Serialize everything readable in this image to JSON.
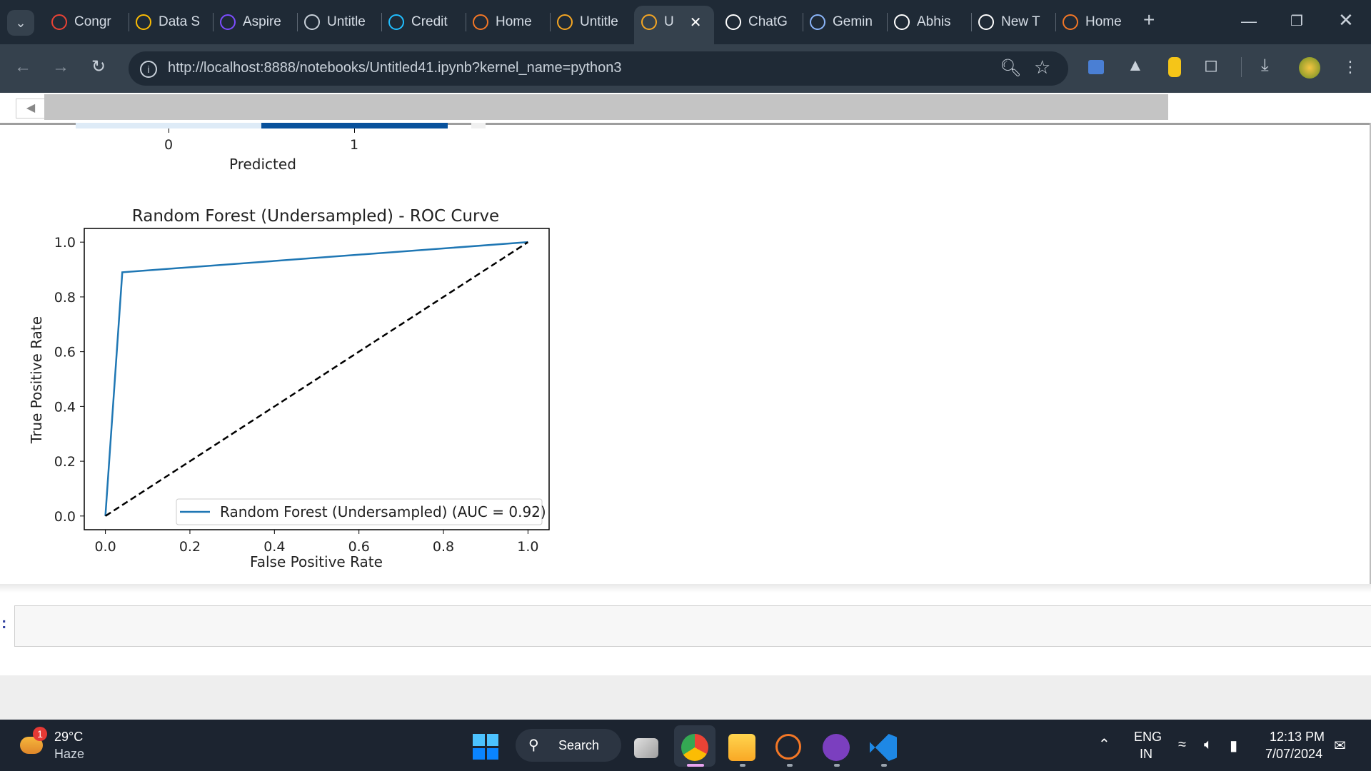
{
  "browser": {
    "tabs": [
      {
        "label": "Congr",
        "icon": "gmail-icon",
        "color": "#ea4335"
      },
      {
        "label": "Data S",
        "icon": "drive-icon",
        "color": "#fbbc04"
      },
      {
        "label": "Aspire",
        "icon": "list-app-icon",
        "color": "#7c4dff"
      },
      {
        "label": "Untitle",
        "icon": "globe-icon",
        "color": "#c9d1da"
      },
      {
        "label": "Credit",
        "icon": "kaggle-icon",
        "color": "#20beff"
      },
      {
        "label": "Home",
        "icon": "jupyter-icon",
        "color": "#f37726"
      },
      {
        "label": "Untitle",
        "icon": "notebook-icon",
        "color": "#f5a623"
      },
      {
        "label": "U",
        "icon": "notebook-icon",
        "color": "#f5a623",
        "active": true
      },
      {
        "label": "ChatG",
        "icon": "chatgpt-icon",
        "color": "#ffffff"
      },
      {
        "label": "Gemin",
        "icon": "gemini-icon",
        "color": "#8ab4f8"
      },
      {
        "label": "Abhis",
        "icon": "github-icon",
        "color": "#ffffff"
      },
      {
        "label": "New T",
        "icon": "chrome-icon",
        "color": "#ffffff"
      },
      {
        "label": "Home",
        "icon": "jupyter-icon",
        "color": "#f37726"
      }
    ],
    "new_tab_symbol": "+",
    "url": "http://localhost:8888/notebooks/Untitled41.ipynb?kernel_name=python3"
  },
  "confusion_matrix_fragment": {
    "tick_0": "0",
    "tick_1": "1",
    "xlabel": "Predicted",
    "cell_colors": [
      "#deebf7",
      "#08519c"
    ]
  },
  "chart_data": {
    "type": "line",
    "title": "Random Forest (Undersampled) - ROC Curve",
    "xlabel": "False Positive Rate",
    "ylabel": "True Positive Rate",
    "xlim": [
      -0.05,
      1.05
    ],
    "ylim": [
      -0.05,
      1.05
    ],
    "xticks": [
      "0.0",
      "0.2",
      "0.4",
      "0.6",
      "0.8",
      "1.0"
    ],
    "yticks": [
      "0.0",
      "0.2",
      "0.4",
      "0.6",
      "0.8",
      "1.0"
    ],
    "series": [
      {
        "name": "Random Forest (Undersampled) (AUC = 0.92)",
        "x": [
          0.0,
          0.04,
          1.0
        ],
        "y": [
          0.0,
          0.89,
          1.0
        ],
        "color": "#1f77b4",
        "style": "solid"
      },
      {
        "x": [
          0.0,
          1.0
        ],
        "y": [
          0.0,
          1.0
        ],
        "color": "#000000",
        "style": "dashed"
      }
    ],
    "legend_position": "lower-right",
    "grid": false
  },
  "taskbar": {
    "weather_temp": "29°C",
    "weather_desc": "Haze",
    "weather_badge": "1",
    "search_label": "Search",
    "lang_line1": "ENG",
    "lang_line2": "IN",
    "time": "12:13 PM",
    "date": "7/07/2024"
  }
}
